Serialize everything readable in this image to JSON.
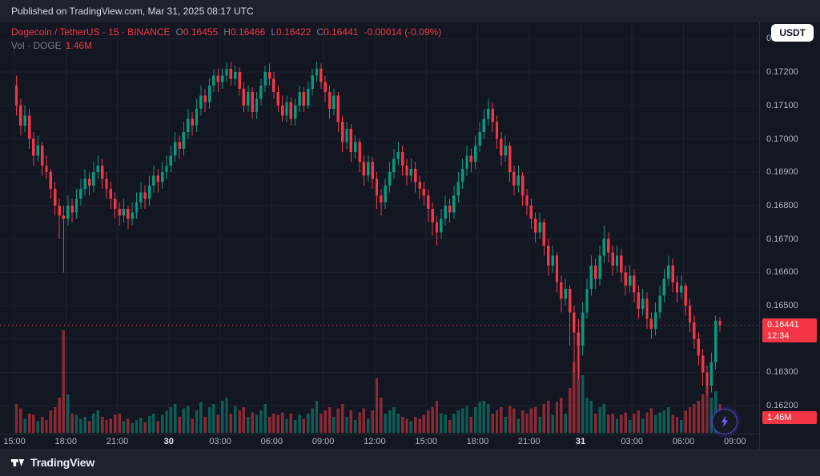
{
  "banner": {
    "text": "Published on TradingView.com, Mar 31, 2025 08:17 UTC"
  },
  "legend": {
    "title": "Dogecoin / TetherUS · 15 · BINANCE",
    "ohlc": {
      "o": {
        "label": "O",
        "value": "0.16455"
      },
      "h": {
        "label": "H",
        "value": "0.16466"
      },
      "l": {
        "label": "L",
        "value": "0.16422"
      },
      "c": {
        "label": "C",
        "value": "0.16441"
      }
    },
    "change": "-0.00014 (-0.09%)",
    "volume_label": "Vol · DOGE",
    "volume_value": "1.46M"
  },
  "currency_button": {
    "label": "USDT"
  },
  "price_axis": {
    "last_price_badge": {
      "price": "0.16441",
      "countdown": "12:34"
    },
    "volume_badge": "1.46M"
  },
  "footer": {
    "brand": "TradingView"
  },
  "colors": {
    "background": "#131722",
    "panel": "#1e222d",
    "grid": "#1c212e",
    "up": "#089981",
    "down": "#f23645",
    "vol_up": "rgba(8,153,129,0.55)",
    "vol_down": "rgba(242,54,69,0.55)",
    "axis_text": "#b2b5be",
    "badge": "#f23645"
  },
  "chart_data": {
    "type": "candlestick",
    "title": "Dogecoin / TetherUS",
    "interval": "15",
    "exchange": "BINANCE",
    "current": {
      "open": 0.16455,
      "high": 0.16466,
      "low": 0.16422,
      "close": 0.16441,
      "change": -0.00014,
      "change_pct": -0.09,
      "volume": "1.46M"
    },
    "ylim": [
      0.162,
      0.173
    ],
    "y_ticks": [
      "0.17300",
      "0.17200",
      "0.17100",
      "0.17000",
      "0.16900",
      "0.16800",
      "0.16700",
      "0.16600",
      "0.16500",
      "0.16400",
      "0.16300",
      "0.16200"
    ],
    "x_ticks": [
      {
        "label": "15:00",
        "major": false
      },
      {
        "label": "18:00",
        "major": false
      },
      {
        "label": "21:00",
        "major": false
      },
      {
        "label": "30",
        "major": true
      },
      {
        "label": "03:00",
        "major": false
      },
      {
        "label": "06:00",
        "major": false
      },
      {
        "label": "09:00",
        "major": false
      },
      {
        "label": "12:00",
        "major": false
      },
      {
        "label": "15:00",
        "major": false
      },
      {
        "label": "18:00",
        "major": false
      },
      {
        "label": "21:00",
        "major": false
      },
      {
        "label": "31",
        "major": true
      },
      {
        "label": "03:00",
        "major": false
      },
      {
        "label": "06:00",
        "major": false
      },
      {
        "label": "09:00",
        "major": false
      }
    ],
    "candles": [
      [
        0.1716,
        0.1719,
        0.1707,
        0.171,
        0.45
      ],
      [
        0.171,
        0.1712,
        0.1701,
        0.1704,
        0.38
      ],
      [
        0.1704,
        0.171,
        0.1702,
        0.1707,
        0.22
      ],
      [
        0.1707,
        0.1709,
        0.1697,
        0.17,
        0.3
      ],
      [
        0.17,
        0.1702,
        0.1692,
        0.1695,
        0.28
      ],
      [
        0.1695,
        0.1701,
        0.1693,
        0.1698,
        0.18
      ],
      [
        0.1698,
        0.1699,
        0.1689,
        0.1692,
        0.25
      ],
      [
        0.1692,
        0.1695,
        0.1688,
        0.169,
        0.2
      ],
      [
        0.169,
        0.1691,
        0.1682,
        0.1685,
        0.35
      ],
      [
        0.1685,
        0.1687,
        0.1677,
        0.168,
        0.4
      ],
      [
        0.168,
        0.1682,
        0.167,
        0.1677,
        0.55
      ],
      [
        0.1677,
        0.168,
        0.166,
        0.1676,
        1.6
      ],
      [
        0.1676,
        0.1683,
        0.1674,
        0.168,
        0.6
      ],
      [
        0.168,
        0.1682,
        0.1675,
        0.1678,
        0.3
      ],
      [
        0.1678,
        0.1685,
        0.1676,
        0.1682,
        0.28
      ],
      [
        0.1682,
        0.1688,
        0.168,
        0.1685,
        0.22
      ],
      [
        0.1685,
        0.1691,
        0.1683,
        0.1688,
        0.25
      ],
      [
        0.1688,
        0.169,
        0.1683,
        0.1686,
        0.18
      ],
      [
        0.1686,
        0.1693,
        0.1684,
        0.169,
        0.3
      ],
      [
        0.169,
        0.1695,
        0.1688,
        0.1692,
        0.35
      ],
      [
        0.1692,
        0.1694,
        0.1685,
        0.1688,
        0.25
      ],
      [
        0.1688,
        0.169,
        0.1682,
        0.1685,
        0.2
      ],
      [
        0.1685,
        0.1687,
        0.1679,
        0.1682,
        0.22
      ],
      [
        0.1682,
        0.1684,
        0.1676,
        0.1679,
        0.28
      ],
      [
        0.1679,
        0.1681,
        0.1674,
        0.1677,
        0.3
      ],
      [
        0.1677,
        0.1682,
        0.1675,
        0.1679,
        0.18
      ],
      [
        0.1679,
        0.168,
        0.1673,
        0.1676,
        0.22
      ],
      [
        0.1676,
        0.1681,
        0.1674,
        0.1678,
        0.15
      ],
      [
        0.1678,
        0.1684,
        0.1676,
        0.1681,
        0.2
      ],
      [
        0.1681,
        0.1687,
        0.1679,
        0.1684,
        0.24
      ],
      [
        0.1684,
        0.1686,
        0.1679,
        0.1682,
        0.16
      ],
      [
        0.1682,
        0.1689,
        0.168,
        0.1686,
        0.26
      ],
      [
        0.1686,
        0.1692,
        0.1684,
        0.1689,
        0.3
      ],
      [
        0.1689,
        0.1691,
        0.1684,
        0.1687,
        0.18
      ],
      [
        0.1687,
        0.1693,
        0.1685,
        0.169,
        0.28
      ],
      [
        0.169,
        0.1695,
        0.1688,
        0.1692,
        0.35
      ],
      [
        0.1692,
        0.1698,
        0.169,
        0.1695,
        0.4
      ],
      [
        0.1695,
        0.1702,
        0.1693,
        0.1699,
        0.45
      ],
      [
        0.1699,
        0.1701,
        0.1694,
        0.1697,
        0.25
      ],
      [
        0.1697,
        0.1705,
        0.1695,
        0.1702,
        0.38
      ],
      [
        0.1702,
        0.1709,
        0.17,
        0.1706,
        0.42
      ],
      [
        0.1706,
        0.1708,
        0.1701,
        0.1704,
        0.22
      ],
      [
        0.1704,
        0.1712,
        0.1702,
        0.1709,
        0.35
      ],
      [
        0.1709,
        0.1716,
        0.1707,
        0.1713,
        0.48
      ],
      [
        0.1713,
        0.1715,
        0.1708,
        0.1711,
        0.25
      ],
      [
        0.1711,
        0.1718,
        0.1709,
        0.1716,
        0.4
      ],
      [
        0.1716,
        0.1721,
        0.1714,
        0.1719,
        0.45
      ],
      [
        0.1719,
        0.1721,
        0.1714,
        0.1717,
        0.28
      ],
      [
        0.1717,
        0.1721,
        0.1715,
        0.1719,
        0.5
      ],
      [
        0.1719,
        0.1723,
        0.1717,
        0.1721,
        0.55
      ],
      [
        0.1721,
        0.1723,
        0.1716,
        0.1718,
        0.3
      ],
      [
        0.1718,
        0.1722,
        0.1716,
        0.172,
        0.42
      ],
      [
        0.172,
        0.17215,
        0.1713,
        0.1715,
        0.35
      ],
      [
        0.1715,
        0.1717,
        0.1708,
        0.171,
        0.4
      ],
      [
        0.171,
        0.1716,
        0.1708,
        0.1714,
        0.25
      ],
      [
        0.1714,
        0.17155,
        0.1706,
        0.1708,
        0.32
      ],
      [
        0.1708,
        0.1714,
        0.1706,
        0.1712,
        0.28
      ],
      [
        0.1712,
        0.1718,
        0.171,
        0.1716,
        0.35
      ],
      [
        0.1716,
        0.1722,
        0.1714,
        0.172,
        0.45
      ],
      [
        0.172,
        0.17225,
        0.1716,
        0.1718,
        0.25
      ],
      [
        0.1718,
        0.172,
        0.1712,
        0.1714,
        0.3
      ],
      [
        0.1714,
        0.1716,
        0.1708,
        0.171,
        0.28
      ],
      [
        0.171,
        0.1713,
        0.1705,
        0.1707,
        0.32
      ],
      [
        0.1707,
        0.1713,
        0.1705,
        0.1711,
        0.22
      ],
      [
        0.1711,
        0.17125,
        0.1704,
        0.1706,
        0.3
      ],
      [
        0.1706,
        0.1712,
        0.1704,
        0.171,
        0.2
      ],
      [
        0.171,
        0.1716,
        0.1708,
        0.1714,
        0.28
      ],
      [
        0.1714,
        0.17155,
        0.1708,
        0.171,
        0.22
      ],
      [
        0.171,
        0.1717,
        0.1709,
        0.1715,
        0.3
      ],
      [
        0.1715,
        0.1721,
        0.1713,
        0.1719,
        0.38
      ],
      [
        0.1719,
        0.1723,
        0.1717,
        0.1721,
        0.5
      ],
      [
        0.1721,
        0.17225,
        0.1715,
        0.1717,
        0.3
      ],
      [
        0.1717,
        0.1719,
        0.1711,
        0.1714,
        0.35
      ],
      [
        0.1714,
        0.1716,
        0.1706,
        0.1709,
        0.4
      ],
      [
        0.1709,
        0.1715,
        0.1707,
        0.1713,
        0.25
      ],
      [
        0.1713,
        0.1714,
        0.1702,
        0.1705,
        0.38
      ],
      [
        0.1705,
        0.1707,
        0.1696,
        0.1699,
        0.45
      ],
      [
        0.1699,
        0.1705,
        0.1697,
        0.1703,
        0.25
      ],
      [
        0.1703,
        0.17045,
        0.1693,
        0.1696,
        0.35
      ],
      [
        0.1696,
        0.1701,
        0.1694,
        0.1699,
        0.2
      ],
      [
        0.1699,
        0.17,
        0.169,
        0.1693,
        0.32
      ],
      [
        0.1693,
        0.1695,
        0.1686,
        0.1689,
        0.38
      ],
      [
        0.1689,
        0.1695,
        0.1687,
        0.1693,
        0.22
      ],
      [
        0.1693,
        0.16945,
        0.1685,
        0.1688,
        0.35
      ],
      [
        0.1688,
        0.169,
        0.1679,
        0.1683,
        0.85
      ],
      [
        0.1683,
        0.1685,
        0.1677,
        0.1681,
        0.55
      ],
      [
        0.1681,
        0.1688,
        0.1679,
        0.1686,
        0.3
      ],
      [
        0.1686,
        0.1693,
        0.1684,
        0.169,
        0.35
      ],
      [
        0.169,
        0.1697,
        0.1688,
        0.1694,
        0.4
      ],
      [
        0.1694,
        0.1699,
        0.1692,
        0.1696,
        0.3
      ],
      [
        0.1696,
        0.1698,
        0.1689,
        0.1692,
        0.25
      ],
      [
        0.1692,
        0.1694,
        0.1686,
        0.1689,
        0.22
      ],
      [
        0.1689,
        0.1694,
        0.1687,
        0.1691,
        0.18
      ],
      [
        0.1691,
        0.1693,
        0.1684,
        0.1687,
        0.25
      ],
      [
        0.1687,
        0.1689,
        0.1682,
        0.1685,
        0.22
      ],
      [
        0.1685,
        0.1687,
        0.168,
        0.1683,
        0.28
      ],
      [
        0.1683,
        0.1685,
        0.1675,
        0.1679,
        0.35
      ],
      [
        0.1679,
        0.1681,
        0.1671,
        0.1675,
        0.4
      ],
      [
        0.1675,
        0.1677,
        0.1668,
        0.1672,
        0.5
      ],
      [
        0.1672,
        0.1679,
        0.167,
        0.1676,
        0.3
      ],
      [
        0.1676,
        0.1683,
        0.1674,
        0.168,
        0.28
      ],
      [
        0.168,
        0.1682,
        0.1675,
        0.1678,
        0.2
      ],
      [
        0.1678,
        0.1686,
        0.1676,
        0.1683,
        0.3
      ],
      [
        0.1683,
        0.169,
        0.1681,
        0.1687,
        0.35
      ],
      [
        0.1687,
        0.1694,
        0.1685,
        0.1691,
        0.38
      ],
      [
        0.1691,
        0.1698,
        0.1689,
        0.1695,
        0.42
      ],
      [
        0.1695,
        0.1697,
        0.169,
        0.1693,
        0.25
      ],
      [
        0.1693,
        0.1701,
        0.1691,
        0.1698,
        0.4
      ],
      [
        0.1698,
        0.1705,
        0.1696,
        0.1702,
        0.48
      ],
      [
        0.1702,
        0.1709,
        0.17,
        0.1706,
        0.5
      ],
      [
        0.1706,
        0.1712,
        0.1704,
        0.1709,
        0.45
      ],
      [
        0.1709,
        0.1711,
        0.1702,
        0.1705,
        0.3
      ],
      [
        0.1705,
        0.1707,
        0.1697,
        0.17,
        0.35
      ],
      [
        0.17,
        0.1702,
        0.1692,
        0.1695,
        0.4
      ],
      [
        0.1695,
        0.1701,
        0.1693,
        0.1698,
        0.25
      ],
      [
        0.1698,
        0.1699,
        0.1687,
        0.169,
        0.42
      ],
      [
        0.169,
        0.1692,
        0.1683,
        0.1686,
        0.38
      ],
      [
        0.1686,
        0.1692,
        0.1684,
        0.1689,
        0.22
      ],
      [
        0.1689,
        0.169,
        0.168,
        0.1683,
        0.35
      ],
      [
        0.1683,
        0.1685,
        0.1677,
        0.168,
        0.3
      ],
      [
        0.168,
        0.1682,
        0.1673,
        0.1676,
        0.38
      ],
      [
        0.1676,
        0.1678,
        0.1669,
        0.1672,
        0.4
      ],
      [
        0.1672,
        0.1678,
        0.167,
        0.1675,
        0.25
      ],
      [
        0.1675,
        0.1676,
        0.1665,
        0.1668,
        0.45
      ],
      [
        0.1668,
        0.167,
        0.1659,
        0.1662,
        0.5
      ],
      [
        0.1662,
        0.1668,
        0.166,
        0.1665,
        0.28
      ],
      [
        0.1665,
        0.1666,
        0.1654,
        0.1657,
        0.48
      ],
      [
        0.1657,
        0.1659,
        0.1648,
        0.1652,
        0.55
      ],
      [
        0.1652,
        0.1658,
        0.165,
        0.1655,
        0.3
      ],
      [
        0.1655,
        0.1656,
        0.1638,
        0.1648,
        0.7
      ],
      [
        0.1648,
        0.165,
        0.163,
        0.1642,
        1.1
      ],
      [
        0.1642,
        0.1646,
        0.1628,
        0.1638,
        1.4
      ],
      [
        0.1638,
        0.1651,
        0.1635,
        0.1648,
        0.9
      ],
      [
        0.1648,
        0.1658,
        0.1646,
        0.1655,
        0.55
      ],
      [
        0.1655,
        0.1665,
        0.1653,
        0.1662,
        0.5
      ],
      [
        0.1662,
        0.1664,
        0.1655,
        0.1658,
        0.3
      ],
      [
        0.1658,
        0.1668,
        0.1656,
        0.1665,
        0.4
      ],
      [
        0.1665,
        0.1674,
        0.1663,
        0.167,
        0.45
      ],
      [
        0.167,
        0.1672,
        0.1663,
        0.1666,
        0.28
      ],
      [
        0.1666,
        0.1668,
        0.1659,
        0.1662,
        0.3
      ],
      [
        0.1662,
        0.1668,
        0.166,
        0.1665,
        0.22
      ],
      [
        0.1665,
        0.1667,
        0.1657,
        0.166,
        0.28
      ],
      [
        0.166,
        0.1662,
        0.1653,
        0.1656,
        0.32
      ],
      [
        0.1656,
        0.1662,
        0.1654,
        0.1659,
        0.2
      ],
      [
        0.1659,
        0.1661,
        0.1651,
        0.1654,
        0.3
      ],
      [
        0.1654,
        0.1656,
        0.1646,
        0.1649,
        0.35
      ],
      [
        0.1649,
        0.1655,
        0.1647,
        0.1652,
        0.22
      ],
      [
        0.1652,
        0.1654,
        0.1643,
        0.1646,
        0.32
      ],
      [
        0.1646,
        0.1648,
        0.164,
        0.1643,
        0.38
      ],
      [
        0.1643,
        0.1651,
        0.1641,
        0.1648,
        0.28
      ],
      [
        0.1648,
        0.1656,
        0.1646,
        0.1653,
        0.32
      ],
      [
        0.1653,
        0.1661,
        0.1651,
        0.1658,
        0.35
      ],
      [
        0.1658,
        0.1665,
        0.1656,
        0.1662,
        0.4
      ],
      [
        0.1662,
        0.1664,
        0.1654,
        0.1657,
        0.28
      ],
      [
        0.1657,
        0.1659,
        0.1651,
        0.1654,
        0.25
      ],
      [
        0.1654,
        0.1659,
        0.1652,
        0.1656,
        0.2
      ],
      [
        0.1656,
        0.1657,
        0.1647,
        0.165,
        0.35
      ],
      [
        0.165,
        0.1652,
        0.1642,
        0.1645,
        0.4
      ],
      [
        0.1645,
        0.1647,
        0.1637,
        0.164,
        0.45
      ],
      [
        0.164,
        0.1642,
        0.1632,
        0.1635,
        0.5
      ],
      [
        0.1635,
        0.1637,
        0.1626,
        0.163,
        0.6
      ],
      [
        0.163,
        0.1632,
        0.1623,
        0.1626,
        0.75
      ],
      [
        0.1626,
        0.1636,
        0.1624,
        0.1633,
        0.55
      ],
      [
        0.1633,
        0.1647,
        0.1631,
        0.16455,
        0.65
      ],
      [
        0.16455,
        0.16466,
        0.16422,
        0.16441,
        0.45
      ]
    ]
  }
}
